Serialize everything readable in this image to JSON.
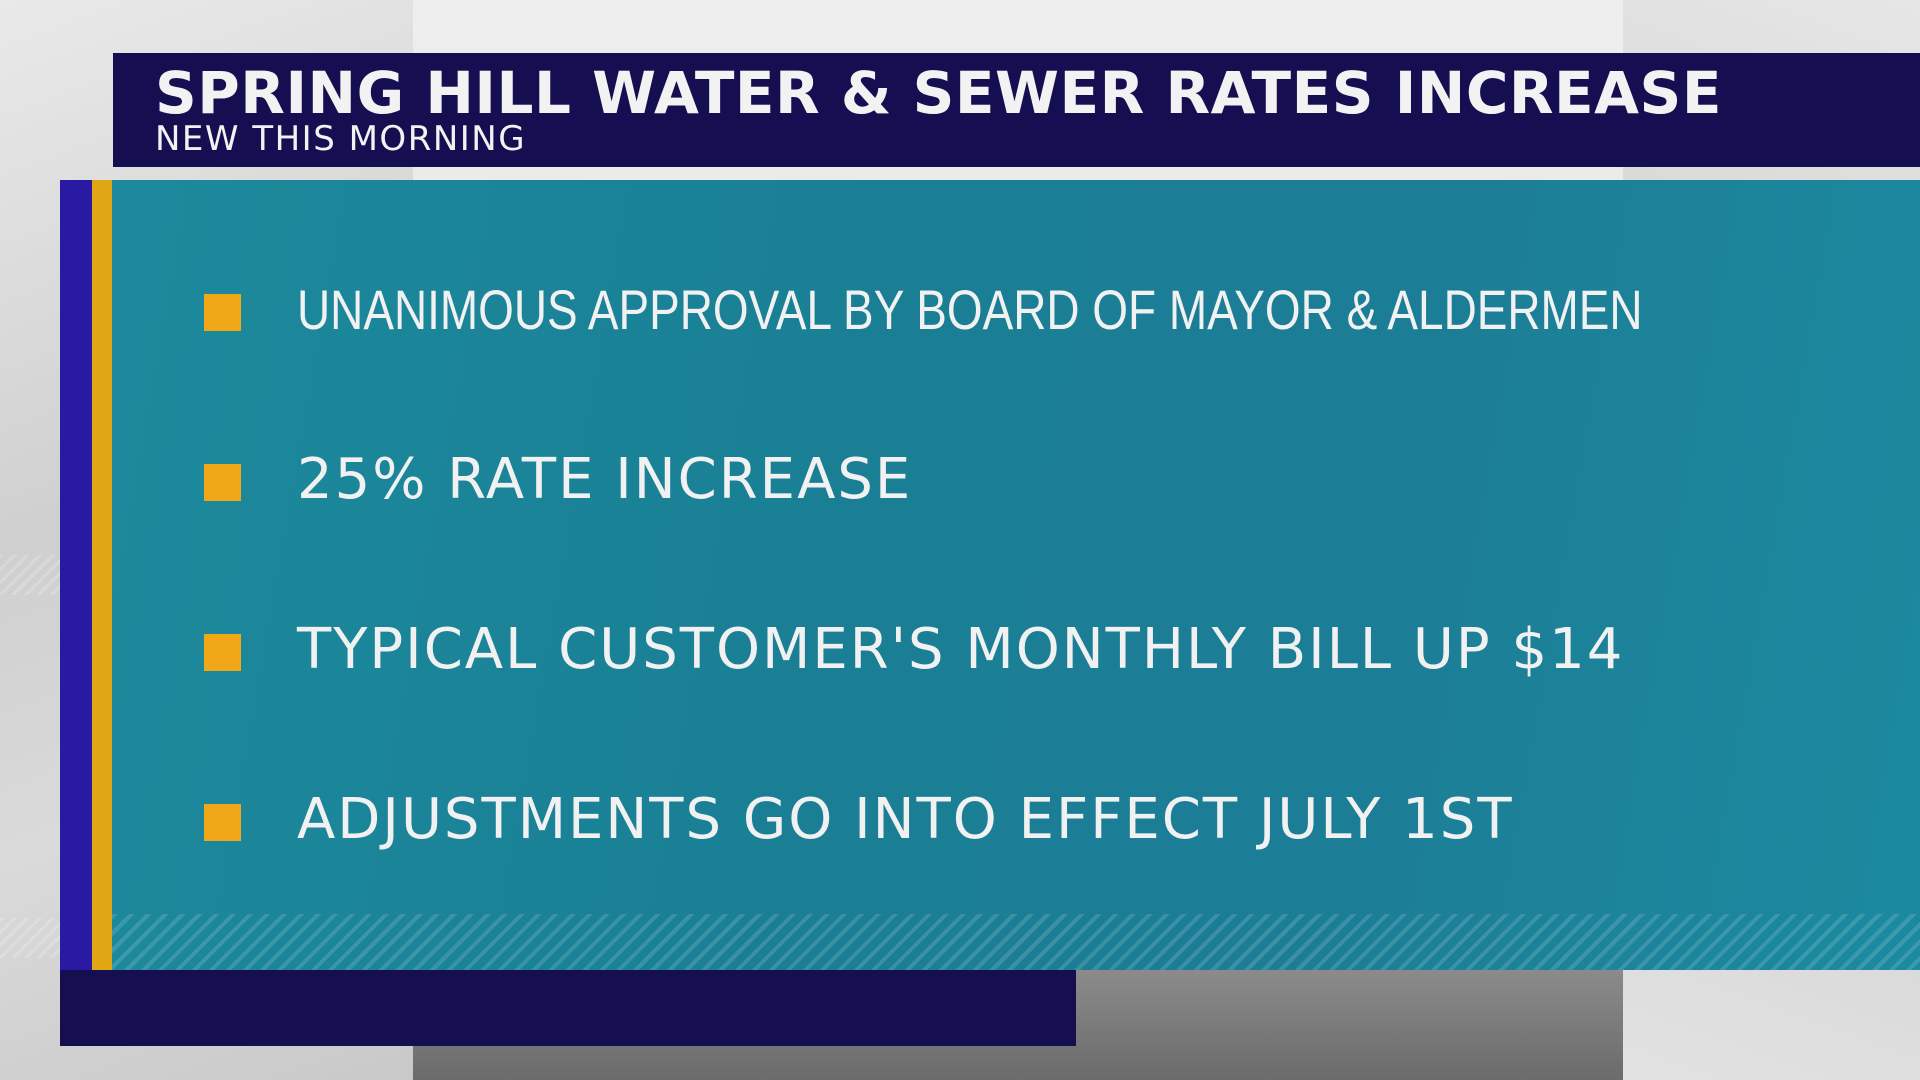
{
  "header": {
    "title": "SPRING HILL WATER & SEWER RATES INCREASE",
    "subtitle": "NEW THIS MORNING"
  },
  "bullets": [
    {
      "text": "UNANIMOUS APPROVAL BY BOARD OF MAYOR & ALDERMEN"
    },
    {
      "text": "25% RATE INCREASE"
    },
    {
      "text": "TYPICAL CUSTOMER'S MONTHLY BILL UP $14"
    },
    {
      "text": "ADJUSTMENTS GO INTO EFFECT JULY 1ST"
    }
  ],
  "colors": {
    "header_bg": "#150f52",
    "panel_bg": "#1a7f95",
    "bullet_accent": "#f0a818",
    "gold_edge": "#e0a614",
    "blue_edge": "#2a1aa3",
    "text": "#f1f1f1"
  }
}
